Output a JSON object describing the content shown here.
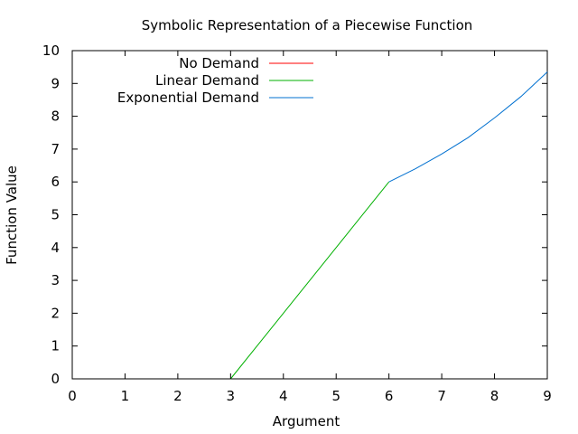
{
  "chart_data": {
    "type": "line",
    "title": "Symbolic Representation of a Piecewise Function",
    "xlabel": "Argument",
    "ylabel": "Function Value",
    "xlim": [
      0,
      9
    ],
    "ylim": [
      0,
      10
    ],
    "xticks": [
      "0",
      "1",
      "2",
      "3",
      "4",
      "5",
      "6",
      "7",
      "8",
      "9"
    ],
    "yticks": [
      "0",
      "1",
      "2",
      "3",
      "4",
      "5",
      "6",
      "7",
      "8",
      "9",
      "10"
    ],
    "grid": false,
    "legend_position": "top-left",
    "series": [
      {
        "name": "No Demand",
        "color": "#ff0000",
        "points": []
      },
      {
        "name": "Linear Demand",
        "color": "#00b000",
        "points": [
          [
            3,
            0
          ],
          [
            4,
            2
          ],
          [
            5,
            4
          ],
          [
            6,
            6
          ]
        ]
      },
      {
        "name": "Exponential Demand",
        "color": "#0070d0",
        "points": [
          [
            6,
            6
          ],
          [
            6.5,
            6.4
          ],
          [
            7,
            6.85
          ],
          [
            7.5,
            7.35
          ],
          [
            8,
            7.95
          ],
          [
            8.5,
            8.6
          ],
          [
            9,
            9.35
          ]
        ]
      }
    ]
  }
}
